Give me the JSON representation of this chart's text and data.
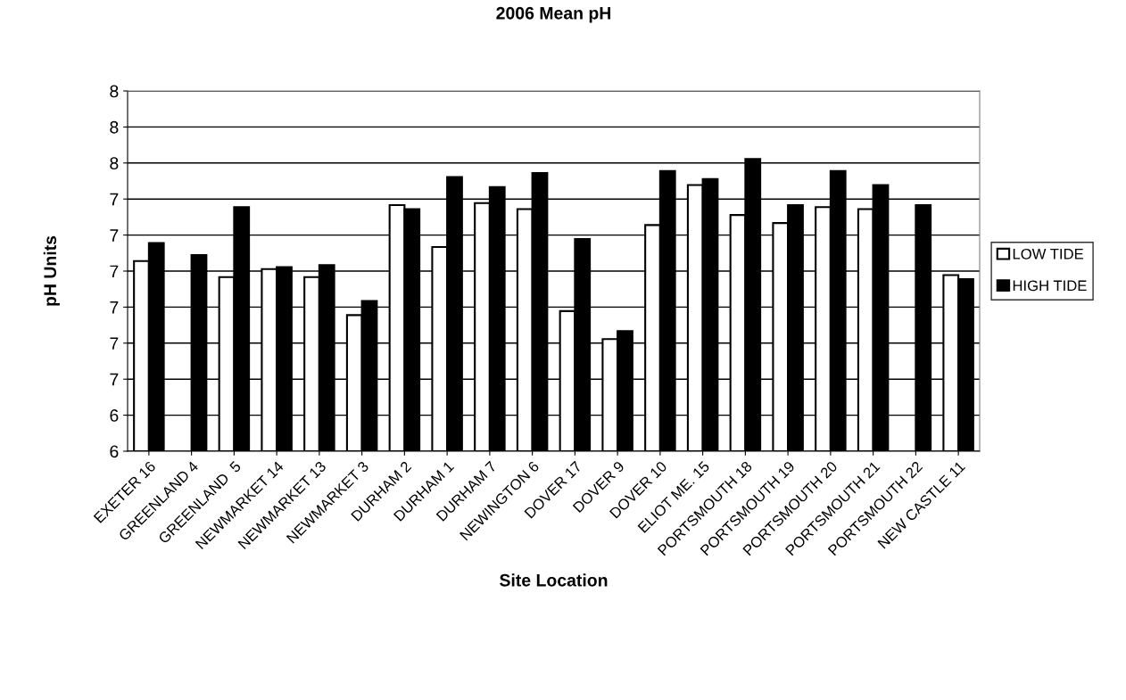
{
  "chart_data": {
    "type": "bar",
    "title": "2006 Mean pH",
    "xlabel": "Site Location",
    "ylabel": "pH Units",
    "categories": [
      "EXETER 16",
      "GREENLAND 4",
      "GREENLAND  5",
      "NEWMARKET 14",
      "NEWMARKET 13",
      "NEWMARKET 3",
      "DURHAM 2",
      "DURHAM 1",
      "DURHAM 7",
      "NEWINGTON 6",
      "DOVER 17",
      "DOVER 9",
      "DOVER 10",
      "ELIOT ME. 15",
      "PORTSMOUTH 18",
      "PORTSMOUTH 19",
      "PORTSMOUTH 20",
      "PORTSMOUTH 21",
      "PORTSMOUTH 22",
      "NEW CASTLE 11"
    ],
    "series": [
      {
        "name": "LOW TIDE",
        "color": "#ffffff",
        "values": [
          7.15,
          null,
          7.07,
          7.11,
          7.07,
          6.88,
          7.43,
          7.22,
          7.44,
          7.41,
          6.9,
          6.76,
          7.33,
          7.53,
          7.38,
          7.34,
          7.42,
          7.41,
          null,
          7.08
        ]
      },
      {
        "name": "HIGH TIDE",
        "color": "#000000",
        "values": [
          7.24,
          7.18,
          7.42,
          7.12,
          7.13,
          6.95,
          7.41,
          7.57,
          7.52,
          7.59,
          7.26,
          6.8,
          7.6,
          7.56,
          7.66,
          7.43,
          7.6,
          7.53,
          7.43,
          7.06
        ]
      }
    ],
    "ylim": [
      6.2,
      8.0
    ],
    "yticks": [
      {
        "value": 6.2,
        "label": "6"
      },
      {
        "value": 6.38,
        "label": "6"
      },
      {
        "value": 6.56,
        "label": "7"
      },
      {
        "value": 6.74,
        "label": "7"
      },
      {
        "value": 6.92,
        "label": "7"
      },
      {
        "value": 7.1,
        "label": "7"
      },
      {
        "value": 7.28,
        "label": "7"
      },
      {
        "value": 7.46,
        "label": "7"
      },
      {
        "value": 7.64,
        "label": "8"
      },
      {
        "value": 7.82,
        "label": "8"
      },
      {
        "value": 8.0,
        "label": "8"
      }
    ],
    "grid": "y",
    "legend": "right"
  }
}
